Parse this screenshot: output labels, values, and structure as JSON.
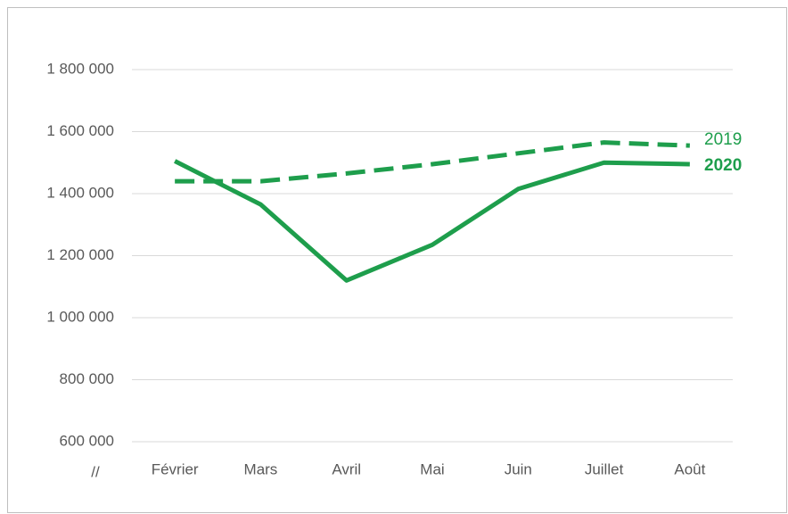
{
  "chart_data": {
    "type": "line",
    "categories": [
      "Février",
      "Mars",
      "Avril",
      "Mai",
      "Juin",
      "Juillet",
      "Août"
    ],
    "series": [
      {
        "name": "2019",
        "color": "#1e9e4c",
        "line_style": "dashed",
        "label_bold": false,
        "values": [
          1440000,
          1440000,
          1465000,
          1495000,
          1530000,
          1565000,
          1555000
        ]
      },
      {
        "name": "2020",
        "color": "#1e9e4c",
        "line_style": "solid",
        "label_bold": true,
        "values": [
          1505000,
          1365000,
          1120000,
          1235000,
          1415000,
          1500000,
          1495000
        ]
      }
    ],
    "ylim": [
      600000,
      1800000
    ],
    "yticks": [
      {
        "value": 600000,
        "label": "600 000"
      },
      {
        "value": 800000,
        "label": "800 000"
      },
      {
        "value": 1000000,
        "label": "1 000 000"
      },
      {
        "value": 1200000,
        "label": "1 200 000"
      },
      {
        "value": 1400000,
        "label": "1 400 000"
      },
      {
        "value": 1600000,
        "label": "1 600 000"
      },
      {
        "value": 1800000,
        "label": "1 800 000"
      }
    ],
    "axis_break": "//",
    "grid": true
  }
}
